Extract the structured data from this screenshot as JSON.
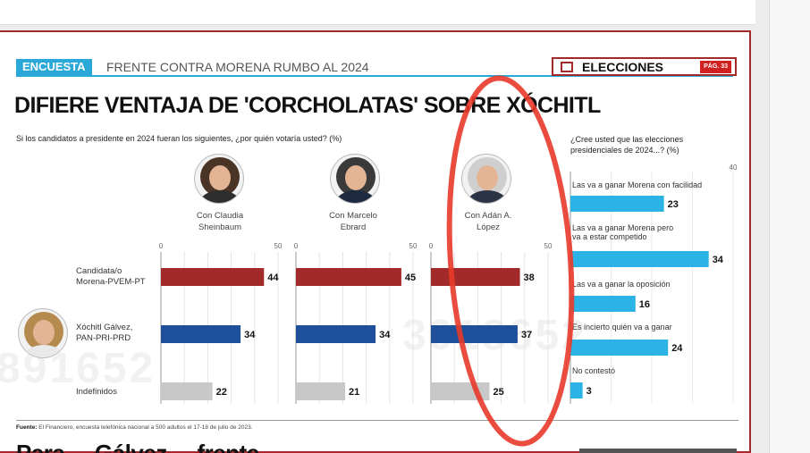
{
  "header": {
    "tag": "ENCUESTA",
    "kicker": "FRENTE CONTRA MORENA RUMBO AL 2024",
    "section": "ELECCIONES",
    "page": "PÁG. 33"
  },
  "headline": "DIFIERE VENTAJA DE 'CORCHOLATAS' SOBRE XÓCHITL",
  "left_question": "Si los candidatos a presidente en 2024 fueran los siguientes, ¿por quién votaría usted?  (%)",
  "right_question": "¿Cree usted que las elecciones presidenciales de 2024...? (%)",
  "candidates": [
    {
      "line1": "Con Claudia",
      "line2": "Sheinbaum"
    },
    {
      "line1": "Con Marcelo",
      "line2": "Ebrard"
    },
    {
      "line1": "Con Adán A.",
      "line2": "López"
    }
  ],
  "row_labels": [
    {
      "line1": "Candidata/o",
      "line2": "Morena-PVEM-PT"
    },
    {
      "line1": "Xóchitl Gálvez,",
      "line2": "PAN-PRI-PRD"
    },
    {
      "line1": "Indefinidos",
      "line2": ""
    }
  ],
  "source_label": "Fuente:",
  "source_text": "El Financiero, encuesta telefónica nacional a 500 adultos el 17-18 de julio de 2023.",
  "bottom_text": "Para ... Gálvez ... frente ... ",
  "watermarks": [
    "891652",
    "3918652"
  ],
  "colors": {
    "accent": "#2aa8d8",
    "morena": "#a32a2a",
    "opposition": "#1d4f9a",
    "undecided": "#c8c8c8",
    "right_bars": "#2bb3e6",
    "annotation": "#e83a2a"
  },
  "chart_data": [
    {
      "type": "bar",
      "orientation": "horizontal",
      "title": "Si los candidatos a presidente en 2024 fueran los siguientes, ¿por quién votaría usted?  (%)",
      "xlim": [
        0,
        50
      ],
      "ticks": [
        0,
        50
      ],
      "categories": [
        "Candidata/o Morena-PVEM-PT",
        "Xóchitl Gálvez, PAN-PRI-PRD",
        "Indefinidos"
      ],
      "series": [
        {
          "name": "Con Claudia Sheinbaum",
          "values": [
            44,
            34,
            22
          ]
        },
        {
          "name": "Con Marcelo Ebrard",
          "values": [
            45,
            34,
            21
          ]
        },
        {
          "name": "Con Adán A. López",
          "values": [
            38,
            37,
            25
          ]
        }
      ]
    },
    {
      "type": "bar",
      "orientation": "horizontal",
      "title": "¿Cree usted que las elecciones presidenciales de 2024...? (%)",
      "xlim": [
        0,
        40
      ],
      "ticks": [
        40
      ],
      "categories": [
        "Las va a ganar Morena con facilidad",
        "Las va a ganar Morena pero va a estar competido",
        "Las va a ganar la oposición",
        "Es incierto quién va a ganar",
        "No contestó"
      ],
      "values": [
        23,
        34,
        16,
        24,
        3
      ]
    }
  ]
}
